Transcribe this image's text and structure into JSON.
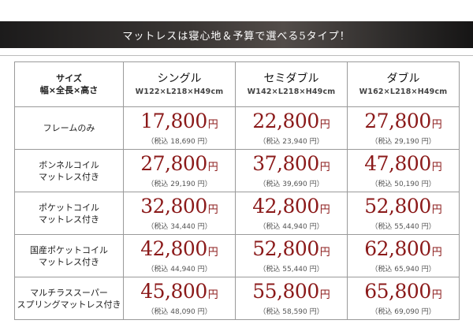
{
  "banner": {
    "title": "マットレスは寝心地＆予算で選べる5タイプ！"
  },
  "table": {
    "corner": {
      "line1": "サイズ",
      "line2": "幅×全長×高さ"
    },
    "columns": [
      {
        "name": "シングル",
        "size": "W122×L218×H49cm"
      },
      {
        "name": "セミダブル",
        "size": "W142×L218×H49cm"
      },
      {
        "name": "ダブル",
        "size": "W162×L218×H49cm"
      }
    ],
    "yen": "円",
    "rows": [
      {
        "label1": "フレームのみ",
        "label2": "",
        "prices": [
          {
            "price": "17,800",
            "tax": "（税込 18,690 円）"
          },
          {
            "price": "22,800",
            "tax": "（税込 23,940 円）"
          },
          {
            "price": "27,800",
            "tax": "（税込 29,190 円）"
          }
        ]
      },
      {
        "label1": "ボンネルコイル",
        "label2": "マットレス付き",
        "prices": [
          {
            "price": "27,800",
            "tax": "（税込 29,190 円）"
          },
          {
            "price": "37,800",
            "tax": "（税込 39,690 円）"
          },
          {
            "price": "47,800",
            "tax": "（税込 50,190 円）"
          }
        ]
      },
      {
        "label1": "ポケットコイル",
        "label2": "マットレス付き",
        "prices": [
          {
            "price": "32,800",
            "tax": "（税込 34,440 円）"
          },
          {
            "price": "42,800",
            "tax": "（税込 44,940 円）"
          },
          {
            "price": "52,800",
            "tax": "（税込 55,440 円）"
          }
        ]
      },
      {
        "label1": "国産ポケットコイル",
        "label2": "マットレス付き",
        "prices": [
          {
            "price": "42,800",
            "tax": "（税込 44,940 円）"
          },
          {
            "price": "52,800",
            "tax": "（税込 55,440 円）"
          },
          {
            "price": "62,800",
            "tax": "（税込 65,940 円）"
          }
        ]
      },
      {
        "label1": "マルチラススーパー",
        "label2": "スプリングマットレス付き",
        "prices": [
          {
            "price": "45,800",
            "tax": "（税込 48,090 円）"
          },
          {
            "price": "55,800",
            "tax": "（税込 58,590 円）"
          },
          {
            "price": "65,800",
            "tax": "（税込 69,090 円）"
          }
        ]
      }
    ]
  }
}
